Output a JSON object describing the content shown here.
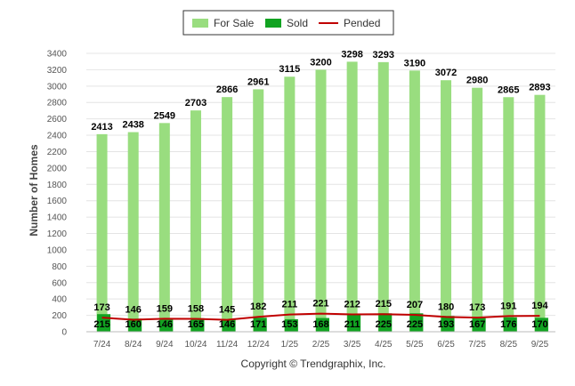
{
  "chart_data": {
    "type": "bar",
    "categories": [
      "7/24",
      "8/24",
      "9/24",
      "10/24",
      "11/24",
      "12/24",
      "1/25",
      "2/25",
      "3/25",
      "4/25",
      "5/25",
      "6/25",
      "7/25",
      "8/25",
      "9/25"
    ],
    "series": [
      {
        "name": "For Sale",
        "type": "bar",
        "color": "#99dd7f",
        "values": [
          2413,
          2438,
          2549,
          2703,
          2866,
          2961,
          3115,
          3200,
          3298,
          3293,
          3190,
          3072,
          2980,
          2865,
          2893
        ]
      },
      {
        "name": "Sold",
        "type": "bar",
        "color": "#11a321",
        "values": [
          215,
          160,
          146,
          165,
          146,
          171,
          153,
          168,
          211,
          225,
          225,
          193,
          167,
          176,
          170
        ]
      },
      {
        "name": "Pended",
        "type": "line",
        "color": "#c00000",
        "values": [
          173,
          146,
          159,
          158,
          145,
          182,
          211,
          221,
          212,
          215,
          207,
          180,
          173,
          191,
          194
        ]
      }
    ],
    "ylabel": "Number of Homes",
    "ylim": [
      0,
      3400
    ],
    "yticks": [
      0,
      200,
      400,
      600,
      800,
      1000,
      1200,
      1400,
      1600,
      1800,
      2000,
      2200,
      2400,
      2600,
      2800,
      3000,
      3200,
      3400
    ],
    "grid": true,
    "legend_position": "top-center"
  },
  "footer": {
    "copyright": "Copyright © Trendgraphix, Inc."
  }
}
